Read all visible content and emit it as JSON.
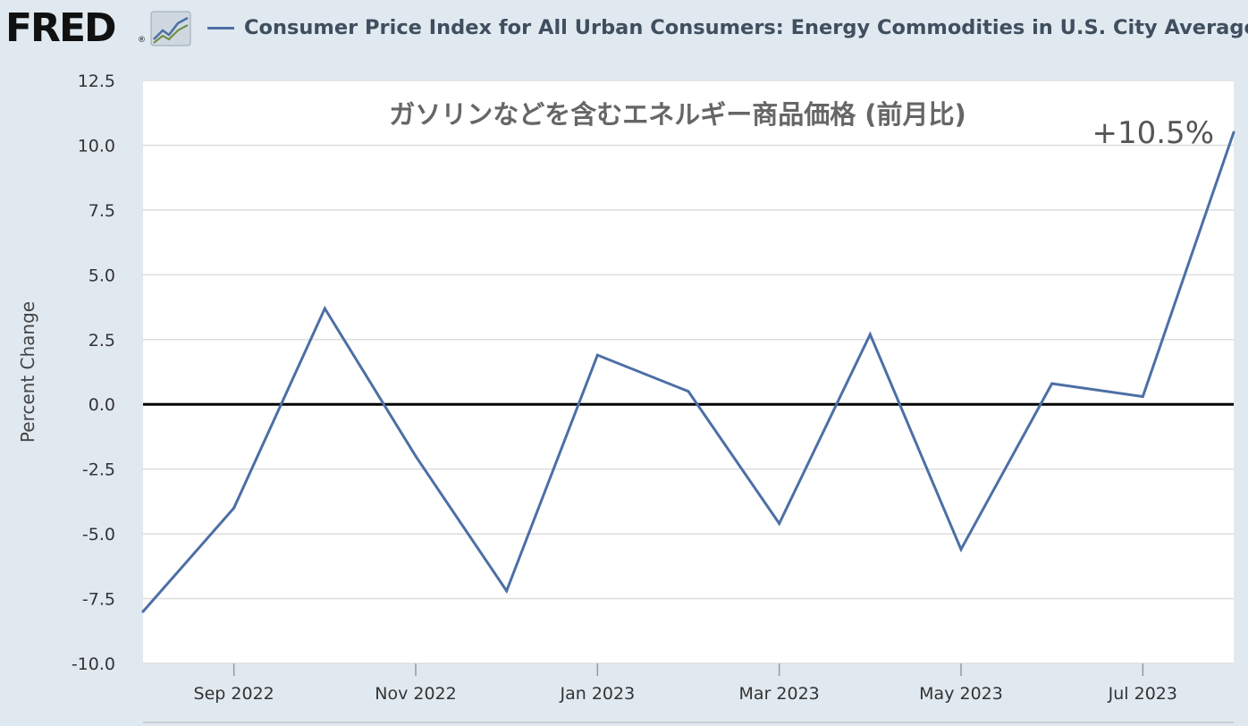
{
  "header": {
    "logo_text": "FRED",
    "logo_registered": "®",
    "logo_icon": "line-chart-icon",
    "legend_label": "Consumer Price Index for All Urban Consumers: Energy Commodities in U.S. City Average"
  },
  "colors": {
    "background": "#e1e9f0",
    "plot_background": "#ffffff",
    "series": "#4c6fa5",
    "zero_line": "#000000",
    "grid": "#dddddd"
  },
  "chart_data": {
    "type": "line",
    "title": "ガソリンなどを含むエネルギー商品価格 (前月比)",
    "annotation": "+10.5%",
    "xlabel": "",
    "ylabel": "Percent Change",
    "ylim": [
      -10.0,
      12.5
    ],
    "yticks": [
      "12.5",
      "10.0",
      "7.5",
      "5.0",
      "2.5",
      "0.0",
      "-2.5",
      "-5.0",
      "-7.5",
      "-10.0"
    ],
    "xticks": [
      "Sep 2022",
      "Nov 2022",
      "Jan 2023",
      "Mar 2023",
      "May 2023",
      "Jul 2023"
    ],
    "grid": true,
    "zero_line": true,
    "series": [
      {
        "name": "Consumer Price Index for All Urban Consumers: Energy Commodities in U.S. City Average",
        "x": [
          "2022-08",
          "2022-09",
          "2022-10",
          "2022-11",
          "2022-12",
          "2023-01",
          "2023-02",
          "2023-03",
          "2023-04",
          "2023-05",
          "2023-06",
          "2023-07",
          "2023-08"
        ],
        "values": [
          -8.0,
          -4.0,
          3.7,
          -2.0,
          -7.2,
          1.9,
          0.5,
          -4.6,
          2.7,
          -5.6,
          0.8,
          0.3,
          10.5
        ]
      }
    ]
  }
}
